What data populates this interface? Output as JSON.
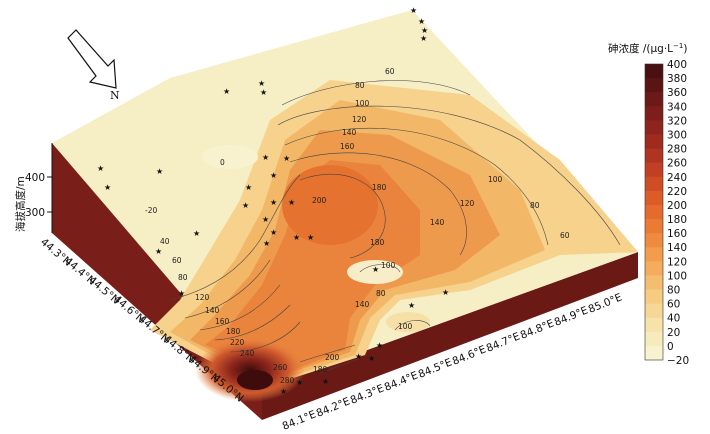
{
  "map": {
    "north_label": "N",
    "z_axis": {
      "title": "海拔高度/m",
      "ticks": [
        "400",
        "300"
      ]
    },
    "lat_ticks": [
      "44.3°N",
      "44.4°N",
      "44.5°N",
      "44.6°N",
      "44.7°N",
      "44.8°N",
      "44.9°N",
      "45.0°N"
    ],
    "lon_ticks": [
      "84.1°E",
      "84.2°E",
      "84.3°E",
      "84.4°E",
      "84.5°E",
      "84.6°E",
      "84.7°E",
      "84.8°E",
      "84.9°E",
      "85.0°E"
    ],
    "contour_labels": [
      "0",
      "40",
      "60",
      "80",
      "100",
      "120",
      "140",
      "160",
      "180",
      "200",
      "220",
      "240",
      "260",
      "280",
      "-20"
    ],
    "colorbar": {
      "title": "砷浓度 /(μg·L",
      "title_sup": "−1",
      "title_close": ")",
      "ticks": [
        "400",
        "380",
        "360",
        "340",
        "320",
        "300",
        "280",
        "260",
        "240",
        "220",
        "200",
        "180",
        "160",
        "140",
        "120",
        "100",
        "80",
        "60",
        "40",
        "20",
        "0",
        "−20"
      ],
      "colors": [
        "#4a0f10",
        "#5b1413",
        "#6c1917",
        "#7d1e1a",
        "#8e241d",
        "#9f2b1f",
        "#b03422",
        "#c23f24",
        "#d04c25",
        "#dc5b28",
        "#e46a2d",
        "#ea7a34",
        "#ef8b3e",
        "#f29c4c",
        "#f4ad5d",
        "#f5bd6f",
        "#f6cb82",
        "#f7d795",
        "#f7e2a9",
        "#f7ebbc",
        "#f8f2cf",
        "#f9f6de"
      ]
    },
    "colors": {
      "wall": "#7a1e1a",
      "wall_dark": "#5c1512",
      "low": "#f6eec4",
      "mid": "#f2b063",
      "high": "#e47a36",
      "peak": "#8e2a1d"
    }
  }
}
